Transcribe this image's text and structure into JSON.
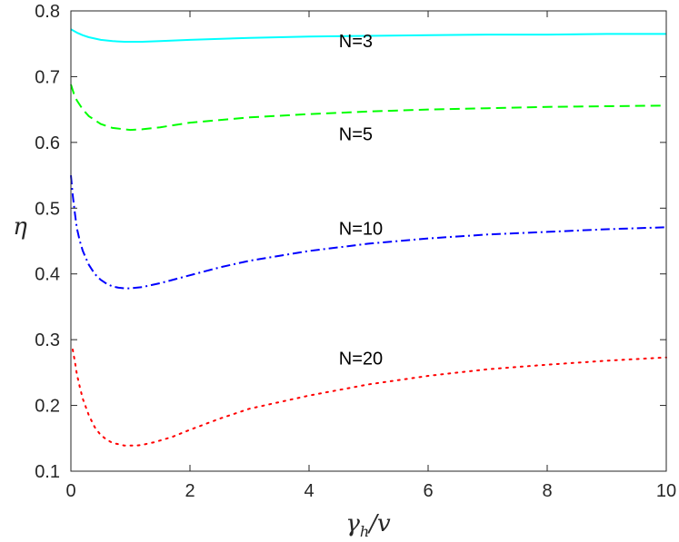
{
  "chart_data": {
    "type": "line",
    "title": "",
    "xlabel": {
      "main": "γ",
      "sub": "h",
      "rest": "/v"
    },
    "ylabel": "η",
    "xlim": [
      0,
      10
    ],
    "ylim": [
      0.1,
      0.8
    ],
    "xticks": [
      "0",
      "2",
      "4",
      "6",
      "8",
      "10"
    ],
    "yticks": [
      "0.1",
      "0.2",
      "0.3",
      "0.4",
      "0.5",
      "0.6",
      "0.7",
      "0.8"
    ],
    "grid": false,
    "series": [
      {
        "style": "solid",
        "color": "#00ffff",
        "label": "N=3",
        "x": [
          0,
          0.1,
          0.2,
          0.3,
          0.5,
          0.7,
          0.9,
          1.0,
          1.2,
          1.5,
          2,
          3,
          4,
          5,
          6,
          7,
          8,
          9,
          10
        ],
        "y": [
          0.772,
          0.767,
          0.763,
          0.76,
          0.756,
          0.754,
          0.753,
          0.753,
          0.753,
          0.754,
          0.756,
          0.759,
          0.761,
          0.762,
          0.763,
          0.764,
          0.764,
          0.765,
          0.765
        ]
      },
      {
        "style": "dashed",
        "color": "#00ff00",
        "label": "N=5",
        "x": [
          0,
          0.05,
          0.1,
          0.2,
          0.3,
          0.5,
          0.7,
          0.9,
          1.0,
          1.2,
          1.5,
          2,
          3,
          4,
          5,
          6,
          7,
          8,
          9,
          10
        ],
        "y": [
          0.688,
          0.674,
          0.664,
          0.65,
          0.64,
          0.628,
          0.622,
          0.62,
          0.619,
          0.62,
          0.623,
          0.63,
          0.638,
          0.643,
          0.647,
          0.65,
          0.652,
          0.654,
          0.655,
          0.656
        ]
      },
      {
        "style": "dashdot",
        "color": "#0000ff",
        "label": "N=10",
        "x": [
          0,
          0.03,
          0.07,
          0.1,
          0.15,
          0.2,
          0.3,
          0.4,
          0.5,
          0.6,
          0.7,
          0.8,
          0.9,
          1.0,
          1.2,
          1.5,
          2,
          2.5,
          3,
          4,
          5,
          6,
          7,
          8,
          9,
          10
        ],
        "y": [
          0.55,
          0.52,
          0.49,
          0.47,
          0.45,
          0.435,
          0.414,
          0.4,
          0.391,
          0.385,
          0.381,
          0.379,
          0.378,
          0.378,
          0.38,
          0.386,
          0.398,
          0.41,
          0.42,
          0.435,
          0.446,
          0.454,
          0.46,
          0.464,
          0.468,
          0.471
        ]
      },
      {
        "style": "dotted",
        "color": "#ff0000",
        "label": "N=20",
        "x": [
          0.03,
          0.07,
          0.1,
          0.15,
          0.2,
          0.3,
          0.4,
          0.5,
          0.6,
          0.7,
          0.8,
          0.9,
          1.0,
          1.1,
          1.2,
          1.4,
          1.7,
          2,
          2.5,
          3,
          4,
          5,
          6,
          7,
          8,
          9,
          10
        ],
        "y": [
          0.285,
          0.265,
          0.248,
          0.228,
          0.21,
          0.185,
          0.167,
          0.155,
          0.148,
          0.143,
          0.141,
          0.139,
          0.139,
          0.139,
          0.14,
          0.144,
          0.152,
          0.163,
          0.18,
          0.195,
          0.215,
          0.232,
          0.245,
          0.255,
          0.262,
          0.268,
          0.273
        ]
      }
    ],
    "annotations": [
      {
        "text": "N=3",
        "x": 4.5,
        "y": 0.745
      },
      {
        "text": "N=5",
        "x": 4.5,
        "y": 0.603
      },
      {
        "text": "N=10",
        "x": 4.5,
        "y": 0.46
      },
      {
        "text": "N=20",
        "x": 4.5,
        "y": 0.262
      }
    ]
  }
}
